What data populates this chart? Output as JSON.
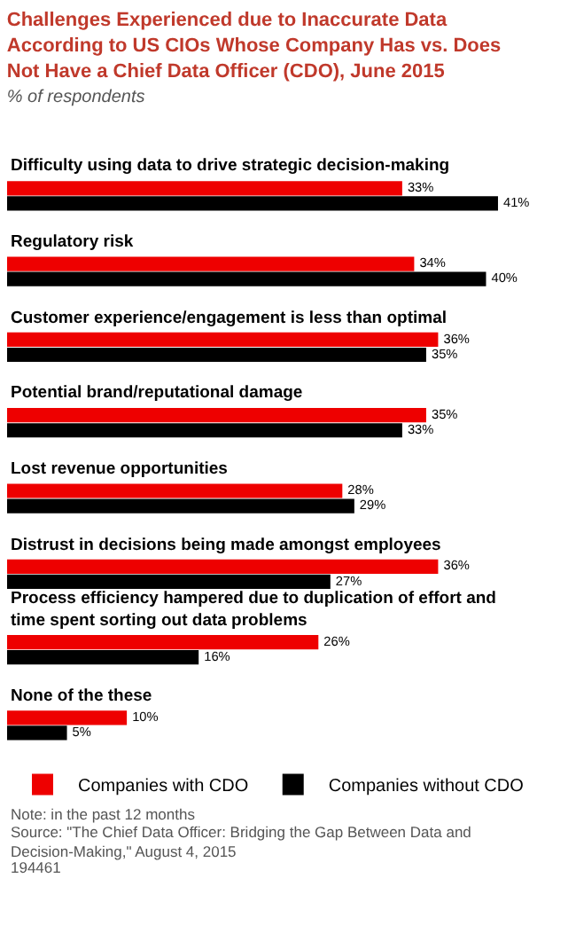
{
  "chart_data": {
    "type": "bar",
    "orientation": "horizontal",
    "title": "Challenges Experienced due to Inaccurate Data According to US CIOs Whose Company Has vs. Does Not Have a Chief Data Officer (CDO), June 2015",
    "subtitle": "% of respondents",
    "categories": [
      "Difficulty using data to drive strategic decision-making",
      "Regulatory risk",
      "Customer experience/engagement is less than optimal",
      "Potential brand/reputational damage",
      "Lost revenue opportunities",
      "Distrust in decisions being made amongst employees",
      "Process efficiency hampered due to duplication of effort and time spent sorting out data problems",
      "None of the these"
    ],
    "series": [
      {
        "name": "Companies with CDO",
        "color": "#ee0000",
        "values": [
          33,
          34,
          36,
          35,
          28,
          36,
          26,
          10
        ],
        "value_labels": [
          "33%",
          "34%",
          "36%",
          "35%",
          "28%",
          "36%",
          "26%",
          "10%"
        ]
      },
      {
        "name": "Companies without CDO",
        "color": "#000000",
        "values": [
          41,
          40,
          35,
          33,
          29,
          27,
          16,
          5
        ],
        "value_labels": [
          "41%",
          "40%",
          "35%",
          "33%",
          "29%",
          "27%",
          "16%",
          "5%"
        ]
      }
    ],
    "legend": "bottom",
    "annotations": [
      "Note: in the past 12 months",
      "Source: \"The Chief Data Officer: Bridging the Gap Between Data and Decision-Making,\" August 4, 2015",
      "194461"
    ]
  }
}
